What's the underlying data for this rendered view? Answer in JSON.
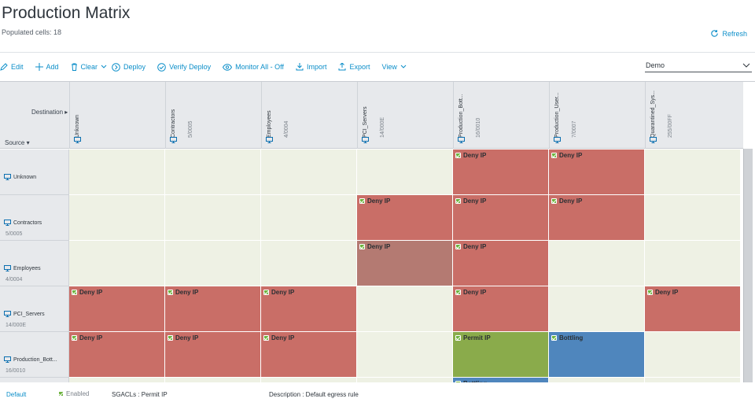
{
  "header": {
    "title": "Production Matrix",
    "subtitle": "Populated cells: 18",
    "refresh_label": "Refresh"
  },
  "toolbar": {
    "items": [
      {
        "label": "Edit",
        "icon": "pencil-icon"
      },
      {
        "label": "Add",
        "icon": "plus-icon"
      },
      {
        "label": "Clear",
        "icon": "trash-icon"
      },
      {
        "label": "Deploy",
        "icon": "arrow-circle-icon"
      },
      {
        "label": "Verify Deploy",
        "icon": "check-circle-icon"
      },
      {
        "label": "Monitor All - Off",
        "icon": "eye-icon"
      },
      {
        "label": "Import",
        "icon": "import-icon"
      },
      {
        "label": "Export",
        "icon": "export-icon"
      },
      {
        "label": "View",
        "icon": "chevron-down-icon"
      }
    ],
    "matrix_select_value": "Demo"
  },
  "matrix": {
    "destination_label": "Destination ▸",
    "source_label": "Source ▾",
    "columns": [
      {
        "name": "Unknown",
        "code": ""
      },
      {
        "name": "Contractors",
        "code": "5/0005"
      },
      {
        "name": "Employees",
        "code": "4/0004"
      },
      {
        "name": "PCI_Servers",
        "code": "14/000E"
      },
      {
        "name": "Production_Bott...",
        "code": "16/0010"
      },
      {
        "name": "Production_User...",
        "code": "7/0007"
      },
      {
        "name": "Quarantined_Sys...",
        "code": "255/00FF"
      }
    ],
    "rows": [
      {
        "name": "Unknown",
        "code": "",
        "cells": [
          "",
          "",
          "",
          "",
          "Deny IP",
          "Deny IP",
          ""
        ]
      },
      {
        "name": "Contractors",
        "code": "5/0005",
        "cells": [
          "",
          "",
          "",
          "Deny IP",
          "Deny IP",
          "Deny IP",
          ""
        ]
      },
      {
        "name": "Employees",
        "code": "4/0004",
        "cells": [
          "",
          "",
          "",
          "Deny IP",
          "Deny IP",
          "",
          ""
        ]
      },
      {
        "name": "PCI_Servers",
        "code": "14/000E",
        "cells": [
          "Deny IP",
          "Deny IP",
          "Deny IP",
          "",
          "Deny IP",
          "",
          "Deny IP"
        ]
      },
      {
        "name": "Production_Bott...",
        "code": "16/0010",
        "cells": [
          "Deny IP",
          "Deny IP",
          "Deny IP",
          "",
          "Permit IP",
          "Bottling",
          ""
        ]
      },
      {
        "name": "",
        "code": "",
        "cells": [
          "",
          "",
          "",
          "",
          "Bottling",
          "",
          ""
        ]
      }
    ],
    "cell_types": {
      "Deny IP": "deny",
      "Permit IP": "permit",
      "Bottling": "custom"
    },
    "selected_cell": {
      "row": 2,
      "col": 3
    },
    "colors": {
      "deny": "#c96e67",
      "permit": "#8aab4b",
      "custom": "#4f86bd",
      "empty": "#eef1e4",
      "accent": "#0b8ec9"
    }
  },
  "footer": {
    "default_label": "Default",
    "enabled_label": "Enabled",
    "sgacl_text": "SGACLs : Permit IP",
    "description_text": "Description : Default egress rule"
  }
}
